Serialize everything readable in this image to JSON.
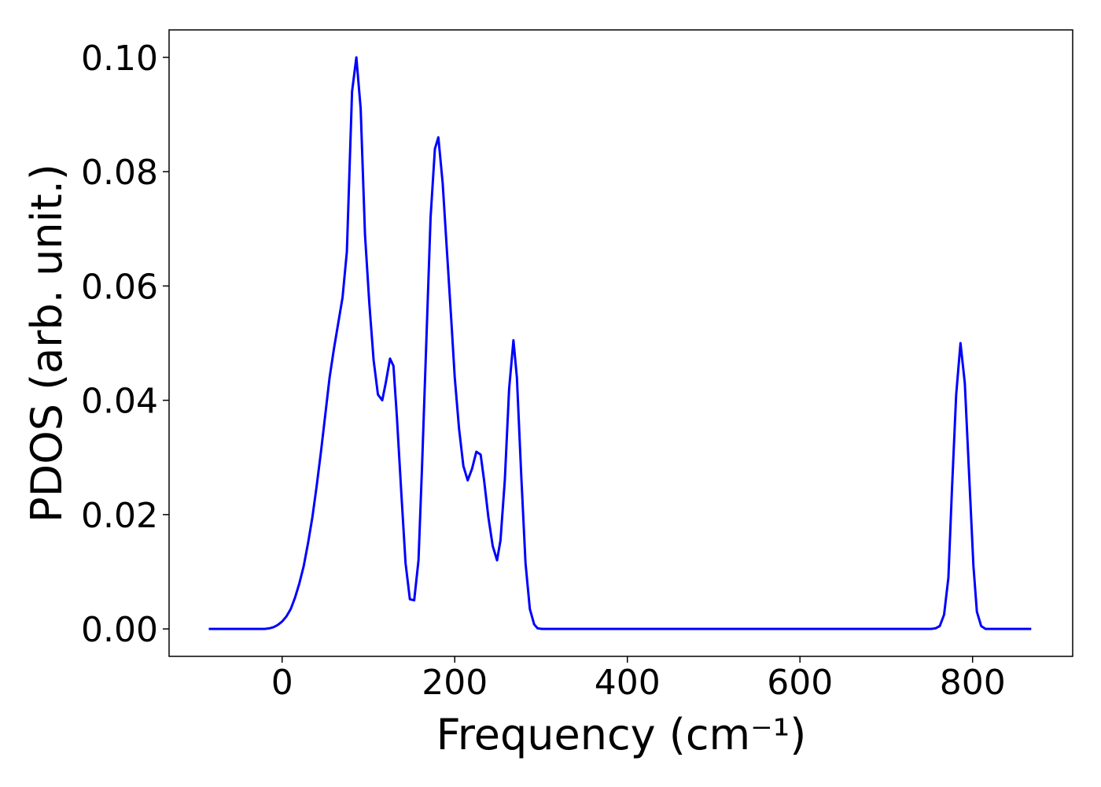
{
  "chart_data": {
    "type": "line",
    "xlabel": "Frequency (cm⁻¹)",
    "ylabel": "PDOS (arb. unit.)",
    "xlim": [
      -131,
      916
    ],
    "ylim": [
      -0.0048,
      0.1048
    ],
    "xticks": [
      0,
      200,
      400,
      600,
      800
    ],
    "yticks": [
      {
        "value": 0,
        "label": "0.00"
      },
      {
        "value": 0.02,
        "label": "0.02"
      },
      {
        "value": 0.04,
        "label": "0.04"
      },
      {
        "value": 0.06,
        "label": "0.06"
      },
      {
        "value": 0.08,
        "label": "0.08"
      },
      {
        "value": 0.1,
        "label": "0.10"
      }
    ],
    "grid": false,
    "series": [
      {
        "color": "#0000ff",
        "x": [
          -85,
          -20,
          -15,
          -10,
          -5,
          0,
          5,
          10,
          15,
          20,
          25,
          30,
          35,
          40,
          45,
          50,
          55,
          60,
          65,
          70,
          75,
          81,
          86,
          91,
          96,
          101,
          106,
          111,
          116,
          120,
          125,
          129,
          133,
          138,
          143,
          148,
          153,
          158,
          162,
          167,
          172,
          177,
          181,
          186,
          191,
          196,
          200,
          205,
          210,
          215,
          220,
          225,
          230,
          234,
          239,
          244,
          249,
          253,
          258,
          263,
          268,
          272,
          277,
          282,
          287,
          292,
          296,
          301,
          752,
          757,
          762,
          767,
          772,
          776,
          781,
          786,
          791,
          796,
          801,
          805,
          810,
          815,
          868
        ],
        "values": [
          0,
          0,
          0.0001,
          0.0003,
          0.0007,
          0.0013,
          0.0022,
          0.0035,
          0.0055,
          0.008,
          0.011,
          0.015,
          0.0195,
          0.025,
          0.031,
          0.0375,
          0.044,
          0.049,
          0.0535,
          0.058,
          0.066,
          0.094,
          0.1,
          0.091,
          0.069,
          0.057,
          0.047,
          0.041,
          0.04,
          0.043,
          0.0473,
          0.046,
          0.037,
          0.024,
          0.0115,
          0.0052,
          0.005,
          0.012,
          0.028,
          0.05,
          0.072,
          0.084,
          0.086,
          0.078,
          0.066,
          0.054,
          0.044,
          0.035,
          0.0285,
          0.026,
          0.028,
          0.031,
          0.0305,
          0.026,
          0.0195,
          0.0145,
          0.012,
          0.0155,
          0.026,
          0.042,
          0.0505,
          0.044,
          0.027,
          0.0115,
          0.0035,
          0.0008,
          0.0001,
          0,
          0,
          0.0001,
          0.0005,
          0.0025,
          0.009,
          0.024,
          0.041,
          0.05,
          0.043,
          0.027,
          0.011,
          0.003,
          0.0005,
          0,
          0
        ]
      }
    ]
  }
}
